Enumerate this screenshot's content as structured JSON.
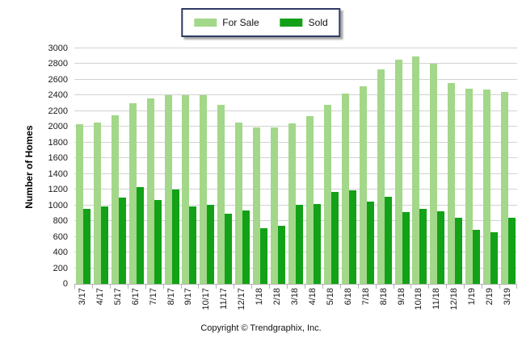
{
  "legend": {
    "items": [
      {
        "label": "For Sale",
        "color": "#a3d789"
      },
      {
        "label": "Sold",
        "color": "#12a117"
      }
    ],
    "border_color": "#2c3a64"
  },
  "y_axis": {
    "title": "Number of Homes"
  },
  "footer": {
    "copyright": "Copyright © Trendgraphix, Inc."
  },
  "colors": {
    "for_sale": "#a3d789",
    "sold": "#12a117",
    "gridline": "#d2d2d2",
    "axis": "#b3b3b3"
  },
  "chart_data": {
    "type": "bar",
    "title": "",
    "xlabel": "",
    "ylabel": "Number of Homes",
    "ylim": [
      0,
      3000
    ],
    "ytick": 200,
    "grid": true,
    "legend_position": "top-center",
    "categories": [
      "3/17",
      "4/17",
      "5/17",
      "6/17",
      "7/17",
      "8/17",
      "9/17",
      "10/17",
      "11/17",
      "12/17",
      "1/18",
      "2/18",
      "3/18",
      "4/18",
      "5/18",
      "6/18",
      "7/18",
      "8/18",
      "9/18",
      "10/18",
      "11/18",
      "12/18",
      "1/19",
      "2/19",
      "3/19"
    ],
    "series": [
      {
        "name": "For Sale",
        "color": "#a3d789",
        "values": [
          2030,
          2060,
          2150,
          2300,
          2360,
          2400,
          2400,
          2400,
          2280,
          2060,
          1990,
          1990,
          2040,
          2140,
          2280,
          2420,
          2520,
          2730,
          2860,
          2900,
          2810,
          2560,
          2490,
          2480,
          2450
        ]
      },
      {
        "name": "Sold",
        "color": "#12a117",
        "values": [
          960,
          990,
          1100,
          1230,
          1070,
          1200,
          990,
          1010,
          890,
          940,
          710,
          740,
          1010,
          1020,
          1170,
          1190,
          1050,
          1110,
          910,
          960,
          920,
          840,
          690,
          660,
          840
        ]
      }
    ]
  }
}
